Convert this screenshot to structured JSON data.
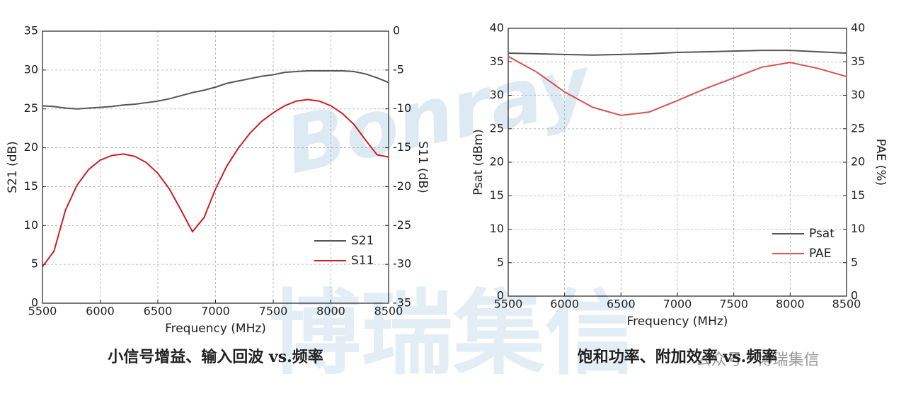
{
  "watermarks": [
    "Bonray",
    "博瑞集信",
    "公众号 · 博瑞集信"
  ],
  "chart_data": [
    {
      "type": "line",
      "title": "小信号增益、输入回波 vs.频率",
      "xlabel": "Frequency (MHz)",
      "ylabel": "S21 (dB)",
      "y2label": "S11 (dB)",
      "x": [
        5500,
        5600,
        5700,
        5800,
        5900,
        6000,
        6100,
        6200,
        6300,
        6400,
        6500,
        6600,
        6700,
        6800,
        6900,
        7000,
        7100,
        7200,
        7300,
        7400,
        7500,
        7600,
        7700,
        7800,
        7900,
        8000,
        8100,
        8200,
        8300,
        8400,
        8500
      ],
      "xlim": [
        5500,
        8500
      ],
      "xticks": [
        5500,
        6000,
        6500,
        7000,
        7500,
        8000,
        8500
      ],
      "ylim": [
        0,
        35
      ],
      "yticks": [
        0,
        5,
        10,
        15,
        20,
        25,
        30,
        35
      ],
      "y2lim": [
        -35,
        0
      ],
      "y2ticks": [
        -35,
        -30,
        -25,
        -20,
        -15,
        -10,
        -5,
        0
      ],
      "grid": true,
      "legend": "lower right",
      "series": [
        {
          "name": "S21",
          "color": "#555555",
          "values": [
            25.4,
            25.3,
            25.1,
            25.0,
            25.1,
            25.2,
            25.3,
            25.5,
            25.6,
            25.8,
            26.0,
            26.3,
            26.7,
            27.1,
            27.4,
            27.8,
            28.3,
            28.6,
            28.9,
            29.2,
            29.4,
            29.7,
            29.8,
            29.9,
            29.9,
            29.9,
            29.9,
            29.8,
            29.5,
            29.0,
            28.4
          ]
        },
        {
          "name": "S11",
          "color": "#cc1f1f",
          "axis": "y2",
          "values": [
            -30.3,
            -28.3,
            -23.0,
            -19.8,
            -17.8,
            -16.6,
            -16.0,
            -15.8,
            -16.1,
            -16.9,
            -18.3,
            -20.3,
            -23.0,
            -25.8,
            -24.0,
            -20.3,
            -17.3,
            -15.0,
            -13.1,
            -11.6,
            -10.5,
            -9.6,
            -9.0,
            -8.8,
            -9.0,
            -9.6,
            -10.6,
            -12.0,
            -14.0,
            -15.9,
            -16.2
          ]
        }
      ]
    },
    {
      "type": "line",
      "title": "饱和功率、附加效率 vs.频率",
      "xlabel": "Frequency (MHz)",
      "ylabel": "Psat (dBm)",
      "y2label": "PAE (%)",
      "x": [
        5500,
        5750,
        6000,
        6250,
        6500,
        6750,
        7000,
        7250,
        7500,
        7750,
        8000,
        8250,
        8500
      ],
      "xlim": [
        5500,
        8500
      ],
      "xticks": [
        5500,
        6000,
        6500,
        7000,
        7500,
        8000,
        8500
      ],
      "ylim": [
        0,
        40
      ],
      "yticks": [
        0,
        5,
        10,
        15,
        20,
        25,
        30,
        35,
        40
      ],
      "y2lim": [
        0,
        40
      ],
      "y2ticks": [
        0,
        5,
        10,
        15,
        20,
        25,
        30,
        35,
        40
      ],
      "grid": true,
      "legend": "lower right",
      "series": [
        {
          "name": "Psat",
          "color": "#555555",
          "values": [
            36.3,
            36.2,
            36.1,
            36.0,
            36.1,
            36.2,
            36.4,
            36.5,
            36.6,
            36.7,
            36.7,
            36.5,
            36.3
          ]
        },
        {
          "name": "PAE",
          "color": "#d9534f",
          "axis": "y2",
          "values": [
            35.8,
            33.5,
            30.5,
            28.2,
            27.0,
            27.5,
            29.2,
            31.0,
            32.6,
            34.2,
            34.9,
            34.0,
            32.8
          ]
        }
      ]
    }
  ]
}
